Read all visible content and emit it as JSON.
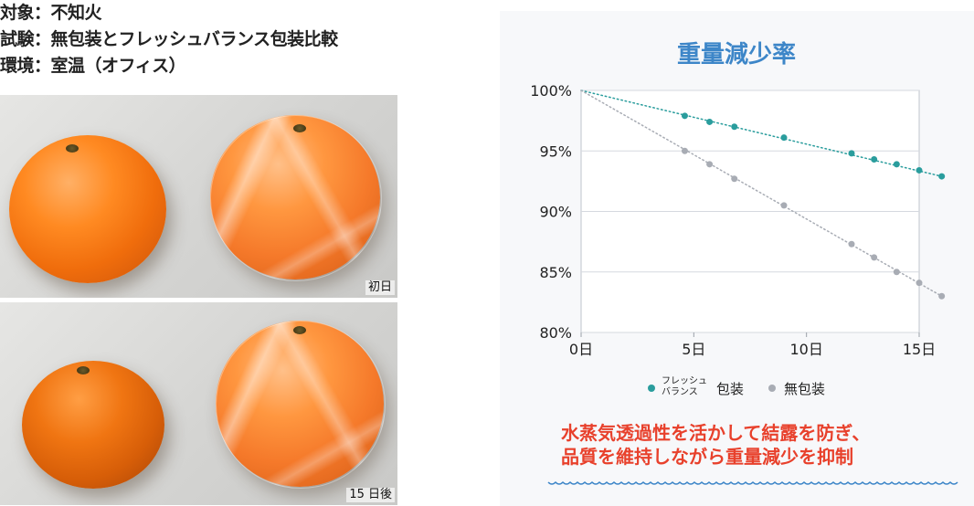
{
  "info": {
    "subject": "対象：不知火",
    "test": "試験：無包装とフレッシュバランス包装比較",
    "environment": "環境：室温（オフィス）"
  },
  "photos": {
    "top_label": "初日",
    "bottom_label": "15 日後"
  },
  "chart_data": {
    "type": "scatter",
    "title": "重量減少率",
    "xlabel": "",
    "ylabel": "",
    "xlim": [
      0,
      15
    ],
    "ylim": [
      80,
      100
    ],
    "x_ticks": [
      0,
      5,
      10,
      15
    ],
    "x_tick_labels": [
      "0日",
      "5日",
      "10日",
      "15日"
    ],
    "y_ticks": [
      80,
      85,
      90,
      95,
      100
    ],
    "y_tick_labels": [
      "80%",
      "85%",
      "90%",
      "95%",
      "100%"
    ],
    "grid": true,
    "trendlines": true,
    "legend_position": "bottom",
    "series": [
      {
        "name": "フレッシュ バランス 包装",
        "name_line1": "フレッシュ",
        "name_line2": "バランス",
        "name_suffix": "包装",
        "color": "#2a9d9d",
        "x": [
          0,
          4.6,
          5.7,
          6.8,
          9,
          12,
          13,
          14,
          15,
          16
        ],
        "y": [
          100,
          97.9,
          97.4,
          97.0,
          96.1,
          94.8,
          94.3,
          93.9,
          93.4,
          92.9
        ]
      },
      {
        "name": "無包装",
        "color": "#a8acb4",
        "x": [
          0,
          4.6,
          5.7,
          6.8,
          9,
          12,
          13,
          14,
          15,
          16
        ],
        "y": [
          100,
          95.0,
          93.9,
          92.7,
          90.5,
          87.3,
          86.2,
          85.0,
          84.1,
          83.0
        ]
      }
    ]
  },
  "note": {
    "line1": "水蒸気透過性を活かして結露を防ぎ、",
    "line2": "品質を維持しながら重量減少を抑制"
  },
  "colors": {
    "title": "#3d86c8",
    "note": "#e8412c",
    "wave": "#3d86c8"
  }
}
